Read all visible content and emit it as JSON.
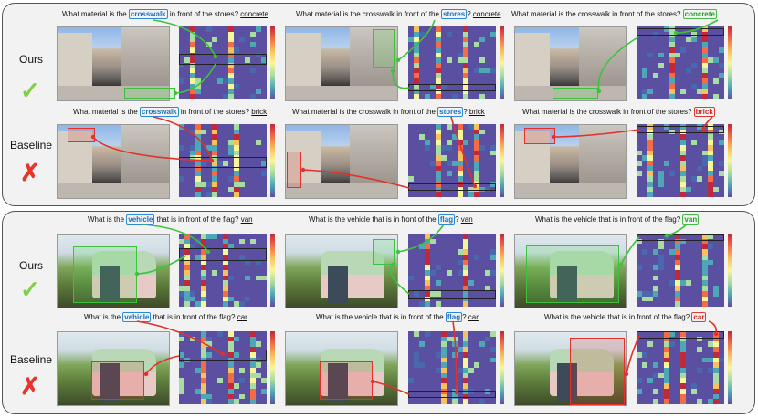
{
  "colors": {
    "ours": "#3ec23e",
    "baseline": "#e4302a",
    "query": "#2b8ad6"
  },
  "labels": {
    "ours": "Ours",
    "baseline": "Baseline"
  },
  "icons": {
    "check": "check-icon",
    "cross": "cross-icon"
  },
  "glyphs": {
    "check": "✓",
    "cross": "✗"
  },
  "q1": {
    "prefix": "What material is the ",
    "crosswalk": "crosswalk",
    "mid": " in front of the ",
    "stores": "stores",
    "suffix": "?",
    "full_a": "What material is the crosswalk in front of the ",
    "full_b": "What material is the crosswalk in front of the stores? ",
    "ans_ours": "concrete",
    "ans_base": "brick"
  },
  "q2": {
    "prefix": "What is the ",
    "vehicle": "vehicle",
    "mid": " that is in front of the ",
    "flag": "flag",
    "suffix": "?",
    "full_a": "What is the vehicle that is in front of the ",
    "full_b": "What is the vehicle that is in front of the flag? ",
    "ans_ours": "van",
    "ans_base": "car"
  }
}
